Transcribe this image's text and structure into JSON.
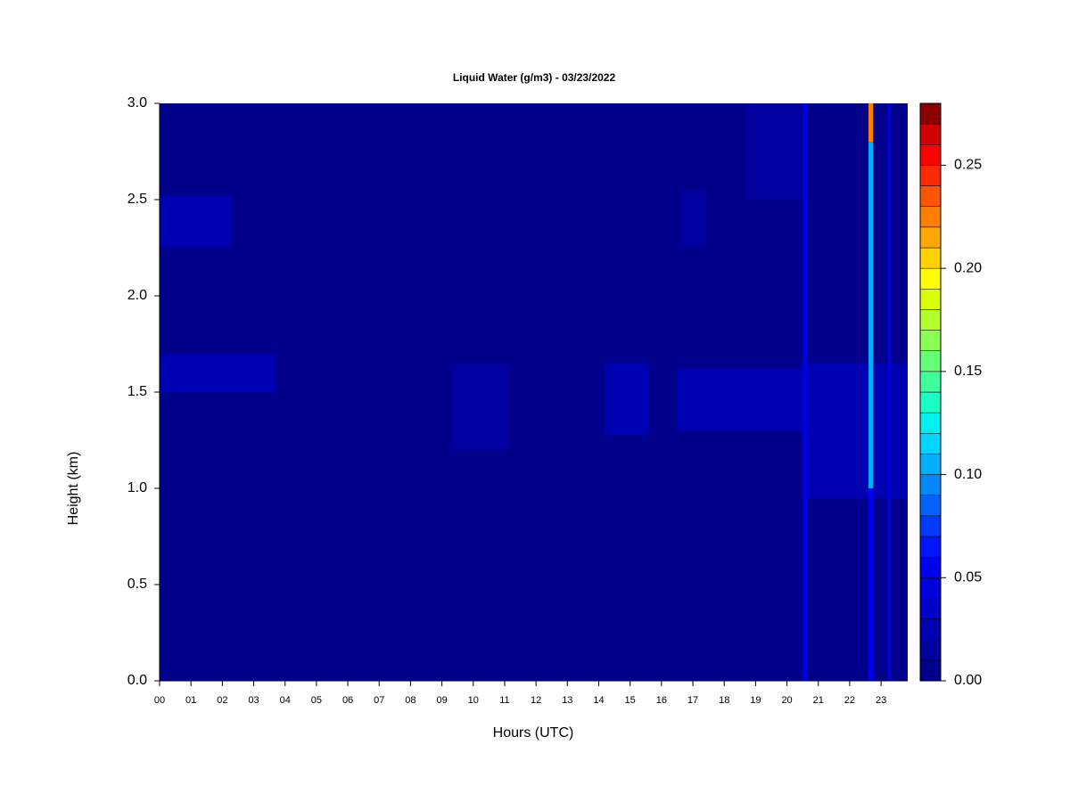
{
  "chart_data": {
    "type": "heatmap",
    "title": "Liquid Water (g/m3) - 03/23/2022",
    "xlabel": "Hours (UTC)",
    "ylabel": "Height (km)",
    "xlim": [
      0,
      23.85
    ],
    "ylim": [
      0,
      3
    ],
    "xticks": [
      {
        "value": 0,
        "label": "00"
      },
      {
        "value": 1,
        "label": "01"
      },
      {
        "value": 2,
        "label": "02"
      },
      {
        "value": 3,
        "label": "03"
      },
      {
        "value": 4,
        "label": "04"
      },
      {
        "value": 5,
        "label": "05"
      },
      {
        "value": 6,
        "label": "06"
      },
      {
        "value": 7,
        "label": "07"
      },
      {
        "value": 8,
        "label": "08"
      },
      {
        "value": 9,
        "label": "09"
      },
      {
        "value": 10,
        "label": "10"
      },
      {
        "value": 11,
        "label": "11"
      },
      {
        "value": 12,
        "label": "12"
      },
      {
        "value": 13,
        "label": "13"
      },
      {
        "value": 14,
        "label": "14"
      },
      {
        "value": 15,
        "label": "15"
      },
      {
        "value": 16,
        "label": "16"
      },
      {
        "value": 17,
        "label": "17"
      },
      {
        "value": 18,
        "label": "18"
      },
      {
        "value": 19,
        "label": "19"
      },
      {
        "value": 20,
        "label": "20"
      },
      {
        "value": 21,
        "label": "21"
      },
      {
        "value": 22,
        "label": "22"
      },
      {
        "value": 23,
        "label": "23"
      }
    ],
    "yticks": [
      {
        "value": 0,
        "label": "0.0"
      },
      0.5,
      {
        "value": 1,
        "label": "1.0"
      },
      1.5,
      {
        "value": 2,
        "label": "2.0"
      },
      2.5,
      {
        "value": 3,
        "label": "3.0"
      }
    ],
    "zlim": [
      0,
      0.28
    ],
    "zticks": [
      {
        "value": 0,
        "label": "0.00"
      },
      0.05,
      {
        "value": 0.1,
        "label": "0.10"
      },
      0.15,
      {
        "value": 0.2,
        "label": "0.20"
      },
      0.25
    ],
    "colors": [
      "#00008b",
      "#00009f",
      "#0000b3",
      "#0000c8",
      "#0000dc",
      "#0000f0",
      "#0016ff",
      "#003cff",
      "#0062ff",
      "#0088ff",
      "#00aeff",
      "#00d4ff",
      "#00f0f0",
      "#1affc6",
      "#40ff9c",
      "#66ff77",
      "#8cff52",
      "#b2ff2d",
      "#d8ff08",
      "#ffff00",
      "#ffd200",
      "#ffa800",
      "#ff7e00",
      "#ff5400",
      "#ff2a00",
      "#ff0000",
      "#d40000",
      "#8b0000"
    ],
    "patches": [
      {
        "x0": 0,
        "x1": 23.85,
        "y0": 0,
        "y1": 3,
        "value": 0.005
      },
      {
        "x0": 0,
        "x1": 2.3,
        "y0": 2.25,
        "y1": 2.52,
        "value": 0.02
      },
      {
        "x0": 0,
        "x1": 3.7,
        "y0": 1.5,
        "y1": 1.7,
        "value": 0.02
      },
      {
        "x0": 9.3,
        "x1": 11.1,
        "y0": 1.2,
        "y1": 1.65,
        "value": 0.015
      },
      {
        "x0": 14.2,
        "x1": 15.6,
        "y0": 1.28,
        "y1": 1.65,
        "value": 0.02
      },
      {
        "x0": 16.6,
        "x1": 17.4,
        "y0": 2.25,
        "y1": 2.55,
        "value": 0.015
      },
      {
        "x0": 16.5,
        "x1": 20.5,
        "y0": 1.3,
        "y1": 1.62,
        "value": 0.02
      },
      {
        "x0": 18.7,
        "x1": 20.5,
        "y0": 2.5,
        "y1": 3,
        "value": 0.015
      },
      {
        "x0": 20.5,
        "x1": 23.85,
        "y0": 0.95,
        "y1": 1.65,
        "value": 0.02
      },
      {
        "x0": 20.5,
        "x1": 20.65,
        "y0": 0,
        "y1": 3,
        "value": 0.04
      },
      {
        "x0": 22.6,
        "x1": 22.75,
        "y0": 0,
        "y1": 3,
        "value": 0.06
      },
      {
        "x0": 22.6,
        "x1": 22.75,
        "y0": 1,
        "y1": 2.8,
        "value": 0.1
      },
      {
        "x0": 22.6,
        "x1": 22.75,
        "y0": 2.8,
        "y1": 3,
        "value": 0.22
      },
      {
        "x0": 23.2,
        "x1": 23.3,
        "y0": 0,
        "y1": 3,
        "value": 0.04
      }
    ]
  }
}
